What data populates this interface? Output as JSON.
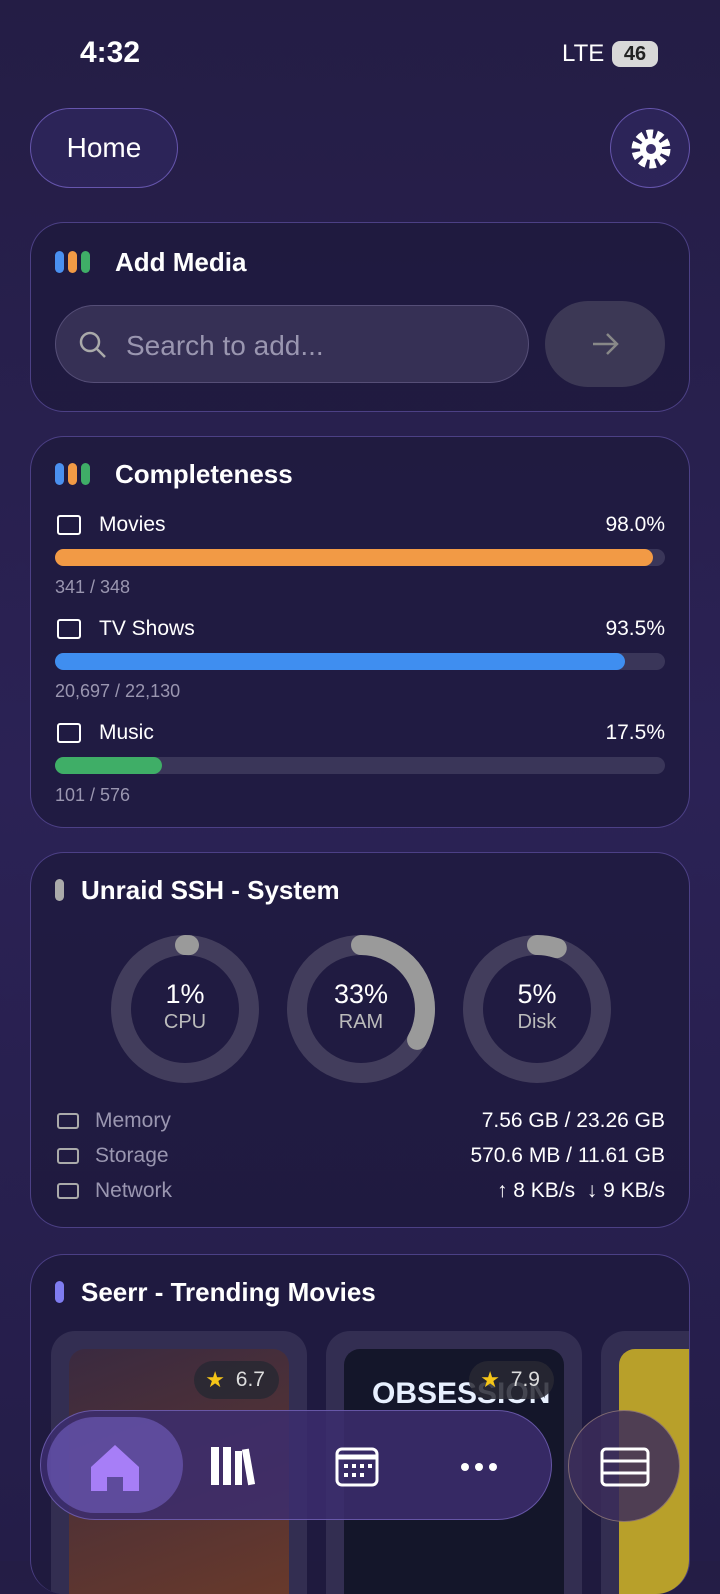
{
  "status": {
    "time": "4:32",
    "network": "LTE",
    "battery": "46"
  },
  "header": {
    "title": "Home"
  },
  "add_media": {
    "title": "Add Media",
    "placeholder": "Search to add..."
  },
  "completeness": {
    "title": "Completeness",
    "items": [
      {
        "name": "Movies",
        "percent": {
          "value": 98.0,
          "label": "98.0%"
        },
        "count": "341 / 348",
        "color": "#f29a45"
      },
      {
        "name": "TV Shows",
        "percent": {
          "value": 93.5,
          "label": "93.5%"
        },
        "count": "20,697 / 22,130",
        "color": "#3f8ef0"
      },
      {
        "name": "Music",
        "percent": {
          "value": 17.5,
          "label": "17.5%"
        },
        "count": "101 / 576",
        "color": "#3fae67"
      }
    ]
  },
  "system": {
    "title": "Unraid SSH - System",
    "gauges": [
      {
        "name": "CPU",
        "percent": {
          "value": 1,
          "label": "1%"
        }
      },
      {
        "name": "RAM",
        "percent": {
          "value": 33,
          "label": "33%"
        }
      },
      {
        "name": "Disk",
        "percent": {
          "value": 5,
          "label": "5%"
        }
      }
    ],
    "stats": [
      {
        "name": "Memory",
        "value": "7.56 GB / 23.26 GB"
      },
      {
        "name": "Storage",
        "value": "570.6 MB / 11.61 GB"
      },
      {
        "name": "Network",
        "value": "↑ 8 KB/s  ↓ 9 KB/s"
      }
    ]
  },
  "trending": {
    "title": "Seerr - Trending Movies",
    "movies": [
      {
        "rating": "6.7"
      },
      {
        "rating": "7.9",
        "title": "OBSESSION"
      }
    ]
  }
}
